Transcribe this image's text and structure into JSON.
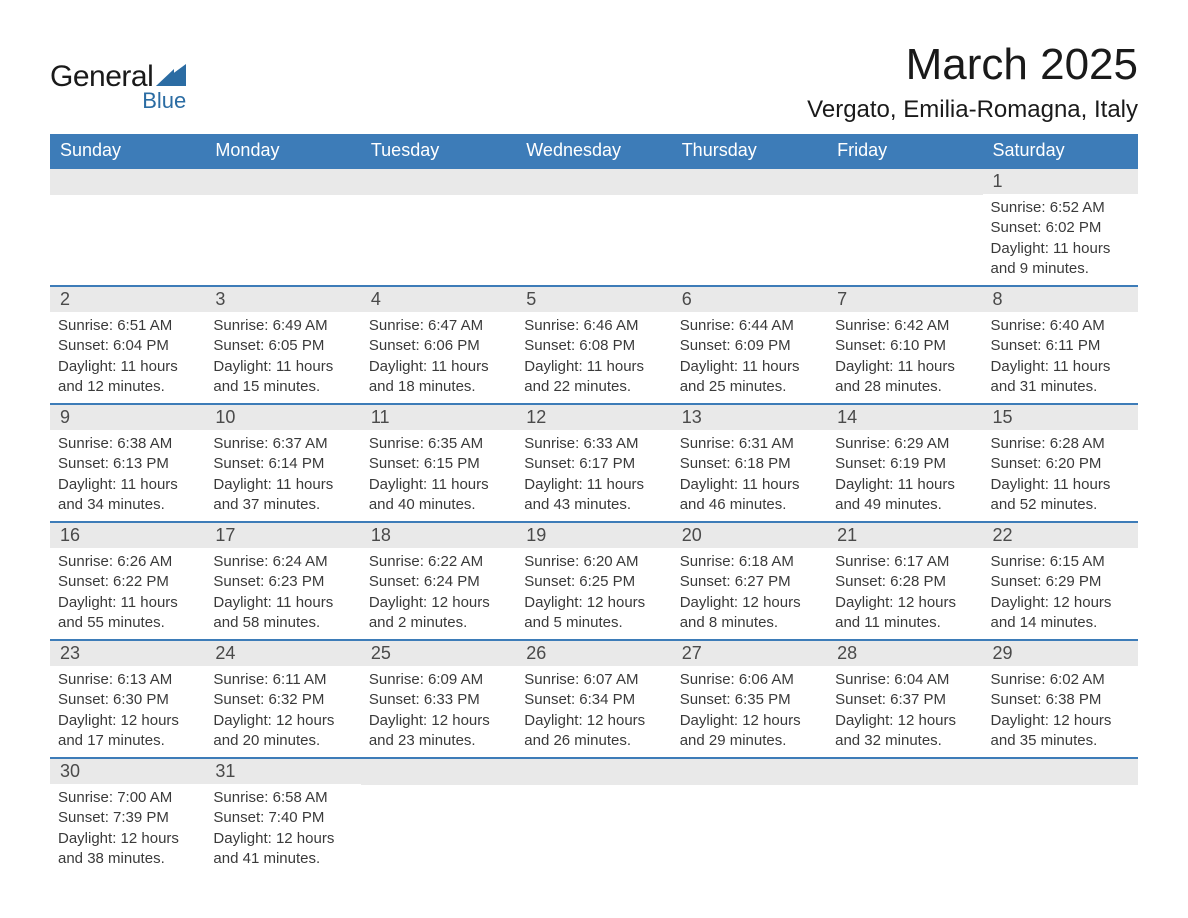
{
  "logo": {
    "main": "General",
    "sub": "Blue",
    "shape_color": "#2b6ca3"
  },
  "title": "March 2025",
  "location": "Vergato, Emilia-Romagna, Italy",
  "colors": {
    "header_bg": "#3d7cb8",
    "header_text": "#ffffff",
    "numbar_bg": "#e9e9e9",
    "numbar_text": "#4a4a4a",
    "body_text": "#3a3a3a",
    "rule": "#3d7cb8"
  },
  "day_headers": [
    "Sunday",
    "Monday",
    "Tuesday",
    "Wednesday",
    "Thursday",
    "Friday",
    "Saturday"
  ],
  "weeks": [
    [
      null,
      null,
      null,
      null,
      null,
      null,
      {
        "n": "1",
        "sr": "Sunrise: 6:52 AM",
        "ss": "Sunset: 6:02 PM",
        "d1": "Daylight: 11 hours",
        "d2": "and 9 minutes."
      }
    ],
    [
      {
        "n": "2",
        "sr": "Sunrise: 6:51 AM",
        "ss": "Sunset: 6:04 PM",
        "d1": "Daylight: 11 hours",
        "d2": "and 12 minutes."
      },
      {
        "n": "3",
        "sr": "Sunrise: 6:49 AM",
        "ss": "Sunset: 6:05 PM",
        "d1": "Daylight: 11 hours",
        "d2": "and 15 minutes."
      },
      {
        "n": "4",
        "sr": "Sunrise: 6:47 AM",
        "ss": "Sunset: 6:06 PM",
        "d1": "Daylight: 11 hours",
        "d2": "and 18 minutes."
      },
      {
        "n": "5",
        "sr": "Sunrise: 6:46 AM",
        "ss": "Sunset: 6:08 PM",
        "d1": "Daylight: 11 hours",
        "d2": "and 22 minutes."
      },
      {
        "n": "6",
        "sr": "Sunrise: 6:44 AM",
        "ss": "Sunset: 6:09 PM",
        "d1": "Daylight: 11 hours",
        "d2": "and 25 minutes."
      },
      {
        "n": "7",
        "sr": "Sunrise: 6:42 AM",
        "ss": "Sunset: 6:10 PM",
        "d1": "Daylight: 11 hours",
        "d2": "and 28 minutes."
      },
      {
        "n": "8",
        "sr": "Sunrise: 6:40 AM",
        "ss": "Sunset: 6:11 PM",
        "d1": "Daylight: 11 hours",
        "d2": "and 31 minutes."
      }
    ],
    [
      {
        "n": "9",
        "sr": "Sunrise: 6:38 AM",
        "ss": "Sunset: 6:13 PM",
        "d1": "Daylight: 11 hours",
        "d2": "and 34 minutes."
      },
      {
        "n": "10",
        "sr": "Sunrise: 6:37 AM",
        "ss": "Sunset: 6:14 PM",
        "d1": "Daylight: 11 hours",
        "d2": "and 37 minutes."
      },
      {
        "n": "11",
        "sr": "Sunrise: 6:35 AM",
        "ss": "Sunset: 6:15 PM",
        "d1": "Daylight: 11 hours",
        "d2": "and 40 minutes."
      },
      {
        "n": "12",
        "sr": "Sunrise: 6:33 AM",
        "ss": "Sunset: 6:17 PM",
        "d1": "Daylight: 11 hours",
        "d2": "and 43 minutes."
      },
      {
        "n": "13",
        "sr": "Sunrise: 6:31 AM",
        "ss": "Sunset: 6:18 PM",
        "d1": "Daylight: 11 hours",
        "d2": "and 46 minutes."
      },
      {
        "n": "14",
        "sr": "Sunrise: 6:29 AM",
        "ss": "Sunset: 6:19 PM",
        "d1": "Daylight: 11 hours",
        "d2": "and 49 minutes."
      },
      {
        "n": "15",
        "sr": "Sunrise: 6:28 AM",
        "ss": "Sunset: 6:20 PM",
        "d1": "Daylight: 11 hours",
        "d2": "and 52 minutes."
      }
    ],
    [
      {
        "n": "16",
        "sr": "Sunrise: 6:26 AM",
        "ss": "Sunset: 6:22 PM",
        "d1": "Daylight: 11 hours",
        "d2": "and 55 minutes."
      },
      {
        "n": "17",
        "sr": "Sunrise: 6:24 AM",
        "ss": "Sunset: 6:23 PM",
        "d1": "Daylight: 11 hours",
        "d2": "and 58 minutes."
      },
      {
        "n": "18",
        "sr": "Sunrise: 6:22 AM",
        "ss": "Sunset: 6:24 PM",
        "d1": "Daylight: 12 hours",
        "d2": "and 2 minutes."
      },
      {
        "n": "19",
        "sr": "Sunrise: 6:20 AM",
        "ss": "Sunset: 6:25 PM",
        "d1": "Daylight: 12 hours",
        "d2": "and 5 minutes."
      },
      {
        "n": "20",
        "sr": "Sunrise: 6:18 AM",
        "ss": "Sunset: 6:27 PM",
        "d1": "Daylight: 12 hours",
        "d2": "and 8 minutes."
      },
      {
        "n": "21",
        "sr": "Sunrise: 6:17 AM",
        "ss": "Sunset: 6:28 PM",
        "d1": "Daylight: 12 hours",
        "d2": "and 11 minutes."
      },
      {
        "n": "22",
        "sr": "Sunrise: 6:15 AM",
        "ss": "Sunset: 6:29 PM",
        "d1": "Daylight: 12 hours",
        "d2": "and 14 minutes."
      }
    ],
    [
      {
        "n": "23",
        "sr": "Sunrise: 6:13 AM",
        "ss": "Sunset: 6:30 PM",
        "d1": "Daylight: 12 hours",
        "d2": "and 17 minutes."
      },
      {
        "n": "24",
        "sr": "Sunrise: 6:11 AM",
        "ss": "Sunset: 6:32 PM",
        "d1": "Daylight: 12 hours",
        "d2": "and 20 minutes."
      },
      {
        "n": "25",
        "sr": "Sunrise: 6:09 AM",
        "ss": "Sunset: 6:33 PM",
        "d1": "Daylight: 12 hours",
        "d2": "and 23 minutes."
      },
      {
        "n": "26",
        "sr": "Sunrise: 6:07 AM",
        "ss": "Sunset: 6:34 PM",
        "d1": "Daylight: 12 hours",
        "d2": "and 26 minutes."
      },
      {
        "n": "27",
        "sr": "Sunrise: 6:06 AM",
        "ss": "Sunset: 6:35 PM",
        "d1": "Daylight: 12 hours",
        "d2": "and 29 minutes."
      },
      {
        "n": "28",
        "sr": "Sunrise: 6:04 AM",
        "ss": "Sunset: 6:37 PM",
        "d1": "Daylight: 12 hours",
        "d2": "and 32 minutes."
      },
      {
        "n": "29",
        "sr": "Sunrise: 6:02 AM",
        "ss": "Sunset: 6:38 PM",
        "d1": "Daylight: 12 hours",
        "d2": "and 35 minutes."
      }
    ],
    [
      {
        "n": "30",
        "sr": "Sunrise: 7:00 AM",
        "ss": "Sunset: 7:39 PM",
        "d1": "Daylight: 12 hours",
        "d2": "and 38 minutes."
      },
      {
        "n": "31",
        "sr": "Sunrise: 6:58 AM",
        "ss": "Sunset: 7:40 PM",
        "d1": "Daylight: 12 hours",
        "d2": "and 41 minutes."
      },
      null,
      null,
      null,
      null,
      null
    ]
  ]
}
